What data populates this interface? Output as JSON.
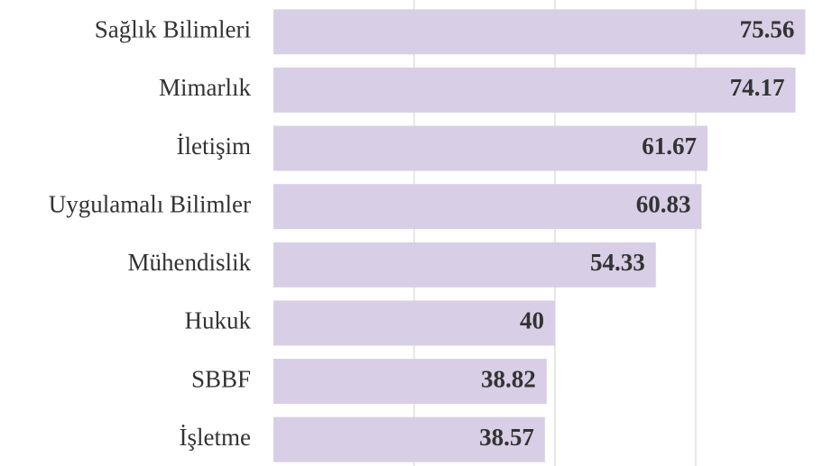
{
  "chart_data": {
    "type": "barh",
    "categories": [
      "Sağlık Bilimleri",
      "Mimarlık",
      "İletişim",
      "Uygulamalı Bilimler",
      "Mühendislik",
      "Hukuk",
      "SBBF",
      "İşletme"
    ],
    "values": [
      75.56,
      74.17,
      61.67,
      60.83,
      54.33,
      40,
      38.82,
      38.57
    ],
    "color": "#d8cfe6",
    "xlim": [
      0,
      78
    ],
    "xticks": [
      20,
      40,
      60
    ],
    "grid": true
  }
}
